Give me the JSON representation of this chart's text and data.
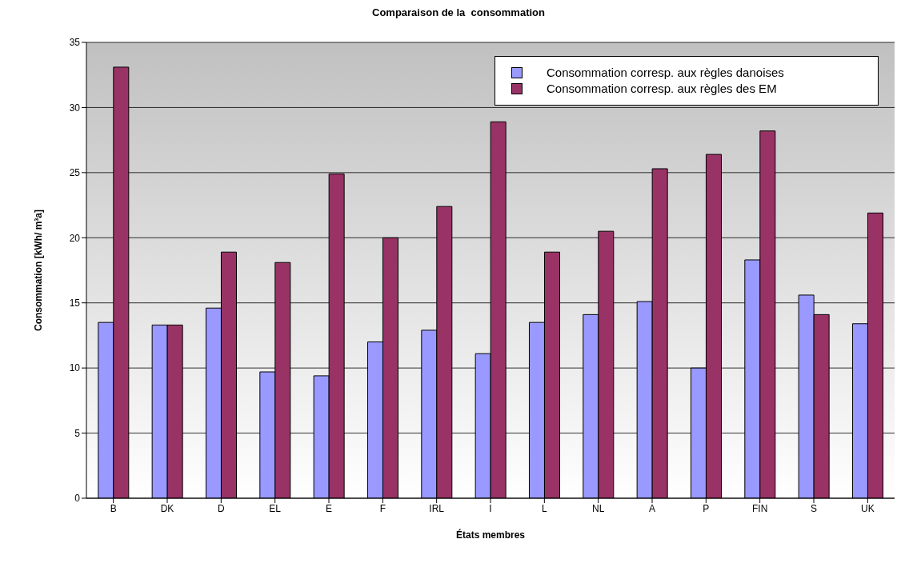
{
  "chart_data": {
    "type": "bar",
    "title": "Comparaison de la  consommation",
    "xlabel": "États membres",
    "ylabel": "Consommation [kWh/ m³a]",
    "categories": [
      "B",
      "DK",
      "D",
      "EL",
      "E",
      "F",
      "IRL",
      "I",
      "L",
      "NL",
      "A",
      "P",
      "FIN",
      "S",
      "UK"
    ],
    "series": [
      {
        "name": "Consommation corresp. aux règles danoises",
        "color": "#9999ff",
        "values": [
          13.5,
          13.3,
          14.6,
          9.7,
          9.4,
          12.0,
          12.9,
          11.1,
          13.5,
          14.1,
          15.1,
          10.0,
          18.3,
          15.6,
          13.4
        ]
      },
      {
        "name": "Consommation corresp. aux règles des EM",
        "color": "#993366",
        "values": [
          33.1,
          13.3,
          18.9,
          18.1,
          24.9,
          20.0,
          22.4,
          28.9,
          18.9,
          20.5,
          25.3,
          26.4,
          28.2,
          14.1,
          21.9
        ]
      }
    ],
    "ylim": [
      0,
      35
    ],
    "yticks": [
      0,
      5,
      10,
      15,
      20,
      25,
      30,
      35
    ],
    "grid": "y",
    "legend": "top right"
  }
}
